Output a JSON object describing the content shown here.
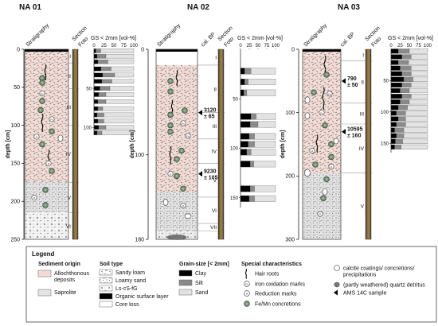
{
  "headers": {
    "stratigraphy": "Stratigraphy",
    "section": "Section",
    "foto": "Foto",
    "cal_bp": "cal. BP",
    "grain_size": "GS < 2mm [vol-%]",
    "depth_axis": "depth [cm]"
  },
  "cores": [
    {
      "id": "na01",
      "title": "NA 01",
      "y_ticks": [
        "0",
        "50",
        "100",
        "150",
        "200",
        "250"
      ],
      "units": [
        "I",
        "II",
        "III",
        "IV",
        "V",
        "VI"
      ],
      "gs_ticks": [
        "0",
        "25",
        "50",
        "75",
        "100"
      ],
      "gs_depth_ticks": [
        "50",
        "100"
      ],
      "ams_dates": []
    },
    {
      "id": "na02",
      "title": "NA 02",
      "y_ticks": [
        "0",
        "100",
        "180"
      ],
      "units": [
        "I",
        "II",
        "III",
        "IV",
        "V",
        "VI",
        "VII"
      ],
      "gs_ticks": [
        "0",
        "25",
        "50",
        "75",
        "100"
      ],
      "gs_depth_ticks": [
        "50",
        "100",
        "150"
      ],
      "ams_dates": [
        {
          "age": "3120",
          "err": "± 65"
        },
        {
          "age": "9230",
          "err": "± 105"
        }
      ]
    },
    {
      "id": "na03",
      "title": "NA 03",
      "y_ticks": [
        "0",
        "100",
        "200",
        "300"
      ],
      "units": [
        "I",
        "II",
        "III",
        "IV",
        "V"
      ],
      "gs_ticks": [
        "0",
        "25",
        "50",
        "75",
        "100"
      ],
      "gs_depth_ticks": [
        "50",
        "100",
        "150"
      ],
      "ams_dates": [
        {
          "age": "790",
          "err": "± 50"
        },
        {
          "age": "10595",
          "err": "± 160"
        }
      ]
    }
  ],
  "chart_data": [
    {
      "type": "bar",
      "core": "NA 01",
      "orientation": "horizontal-stacked",
      "xlabel": "GS < 2mm [vol-%]",
      "xlim": [
        0,
        100
      ],
      "series_names": [
        "Clay",
        "Silt",
        "Sand"
      ],
      "depth_range_cm": [
        0,
        110
      ],
      "samples": [
        {
          "depth": 2,
          "clay": 5,
          "silt": 12,
          "sand": 83
        },
        {
          "depth": 9,
          "clay": 8,
          "silt": 22,
          "sand": 70
        },
        {
          "depth": 16,
          "clay": 10,
          "silt": 25,
          "sand": 65
        },
        {
          "depth": 25,
          "clay": 18,
          "silt": 25,
          "sand": 57
        },
        {
          "depth": 33,
          "clay": 22,
          "silt": 30,
          "sand": 48
        },
        {
          "depth": 41,
          "clay": 20,
          "silt": 25,
          "sand": 55
        },
        {
          "depth": 50,
          "clay": 15,
          "silt": 25,
          "sand": 60
        },
        {
          "depth": 58,
          "clay": 12,
          "silt": 18,
          "sand": 70
        },
        {
          "depth": 67,
          "clay": 10,
          "silt": 20,
          "sand": 70
        },
        {
          "depth": 76,
          "clay": 10,
          "silt": 12,
          "sand": 78
        },
        {
          "depth": 84,
          "clay": 8,
          "silt": 17,
          "sand": 75
        },
        {
          "depth": 92,
          "clay": 10,
          "silt": 15,
          "sand": 75
        },
        {
          "depth": 100,
          "clay": 12,
          "silt": 18,
          "sand": 70
        },
        {
          "depth": 107,
          "clay": 8,
          "silt": 12,
          "sand": 80
        }
      ]
    },
    {
      "type": "bar",
      "core": "NA 02",
      "orientation": "horizontal-stacked",
      "xlabel": "GS < 2mm [vol-%]",
      "xlim": [
        0,
        100
      ],
      "series_names": [
        "Clay",
        "Silt",
        "Sand"
      ],
      "depth_range_cm": [
        0,
        160
      ],
      "samples": [
        {
          "depth": 22,
          "clay": 12,
          "silt": 18,
          "sand": 70
        },
        {
          "depth": 33,
          "clay": 12,
          "silt": 10,
          "sand": 78
        },
        {
          "depth": 44,
          "clay": 10,
          "silt": 8,
          "sand": 82
        },
        {
          "depth": 68,
          "clay": 30,
          "silt": 15,
          "sand": 55
        },
        {
          "depth": 76,
          "clay": 28,
          "silt": 22,
          "sand": 50
        },
        {
          "depth": 88,
          "clay": 25,
          "silt": 15,
          "sand": 60
        },
        {
          "depth": 96,
          "clay": 22,
          "silt": 18,
          "sand": 60
        },
        {
          "depth": 104,
          "clay": 18,
          "silt": 12,
          "sand": 70
        },
        {
          "depth": 116,
          "clay": 28,
          "silt": 10,
          "sand": 62
        },
        {
          "depth": 141,
          "clay": 28,
          "silt": 12,
          "sand": 60
        },
        {
          "depth": 151,
          "clay": 25,
          "silt": 15,
          "sand": 60
        }
      ]
    },
    {
      "type": "bar",
      "core": "NA 03",
      "orientation": "horizontal-stacked",
      "xlabel": "GS < 2mm [vol-%]",
      "xlim": [
        0,
        100
      ],
      "series_names": [
        "Clay",
        "Silt",
        "Sand"
      ],
      "depth_range_cm": [
        0,
        165
      ],
      "samples": [
        {
          "depth": 3,
          "clay": 20,
          "silt": 30,
          "sand": 50
        },
        {
          "depth": 12,
          "clay": 30,
          "silt": 25,
          "sand": 45
        },
        {
          "depth": 21,
          "clay": 20,
          "silt": 28,
          "sand": 52
        },
        {
          "depth": 30,
          "clay": 25,
          "silt": 30,
          "sand": 45
        },
        {
          "depth": 39,
          "clay": 30,
          "silt": 25,
          "sand": 45
        },
        {
          "depth": 48,
          "clay": 35,
          "silt": 25,
          "sand": 40
        },
        {
          "depth": 57,
          "clay": 30,
          "silt": 25,
          "sand": 45
        },
        {
          "depth": 66,
          "clay": 25,
          "silt": 25,
          "sand": 50
        },
        {
          "depth": 75,
          "clay": 30,
          "silt": 25,
          "sand": 45
        },
        {
          "depth": 84,
          "clay": 25,
          "silt": 25,
          "sand": 50
        },
        {
          "depth": 93,
          "clay": 20,
          "silt": 25,
          "sand": 55
        },
        {
          "depth": 102,
          "clay": 15,
          "silt": 25,
          "sand": 60
        },
        {
          "depth": 111,
          "clay": 20,
          "silt": 20,
          "sand": 60
        },
        {
          "depth": 120,
          "clay": 15,
          "silt": 25,
          "sand": 60
        },
        {
          "depth": 129,
          "clay": 10,
          "silt": 25,
          "sand": 65
        },
        {
          "depth": 138,
          "clay": 15,
          "silt": 20,
          "sand": 65
        },
        {
          "depth": 147,
          "clay": 12,
          "silt": 20,
          "sand": 68
        },
        {
          "depth": 156,
          "clay": 10,
          "silt": 18,
          "sand": 72
        }
      ]
    }
  ],
  "legend": {
    "title": "Legend",
    "sediment_origin": {
      "heading": "Sediment origin",
      "items": [
        {
          "label_lines": [
            "Allochthonous",
            "deposits"
          ],
          "color": "#f3dcd6"
        },
        {
          "label_lines": [
            "Saprolite"
          ],
          "color": "#e4e4e4"
        }
      ]
    },
    "soil_type": {
      "heading": "Soil type",
      "items": [
        "Sandy loam",
        "Loamy sand",
        "Ls-cS-fG",
        "Organic surface layer",
        "Core loss"
      ]
    },
    "grain_size": {
      "heading": "Grain-size [< 2mm]",
      "items": [
        {
          "label": "Clay",
          "color": "#000000"
        },
        {
          "label": "Silt",
          "color": "#8a8a8a"
        },
        {
          "label": "Sand",
          "color": "#e2e2e2"
        }
      ]
    },
    "special": {
      "heading": "Special characteristics",
      "items": [
        "Hair roots",
        "Iron oxidation marks",
        "Reduction marks",
        "Fe/Mn concretions"
      ],
      "items_right": [
        {
          "label_lines": [
            "calcite coatings/ concretions/",
            "precipitations"
          ]
        },
        {
          "label_lines": [
            "(partly weathered) quartz detritus"
          ]
        },
        {
          "label_lines": [
            "AMS 14C sample"
          ]
        }
      ]
    },
    "colors": {
      "allochthonous": "#f3dcd6",
      "saprolite": "#e4e4e4",
      "clay": "#000000",
      "silt": "#8a8a8a",
      "sand": "#e2e2e2"
    }
  }
}
